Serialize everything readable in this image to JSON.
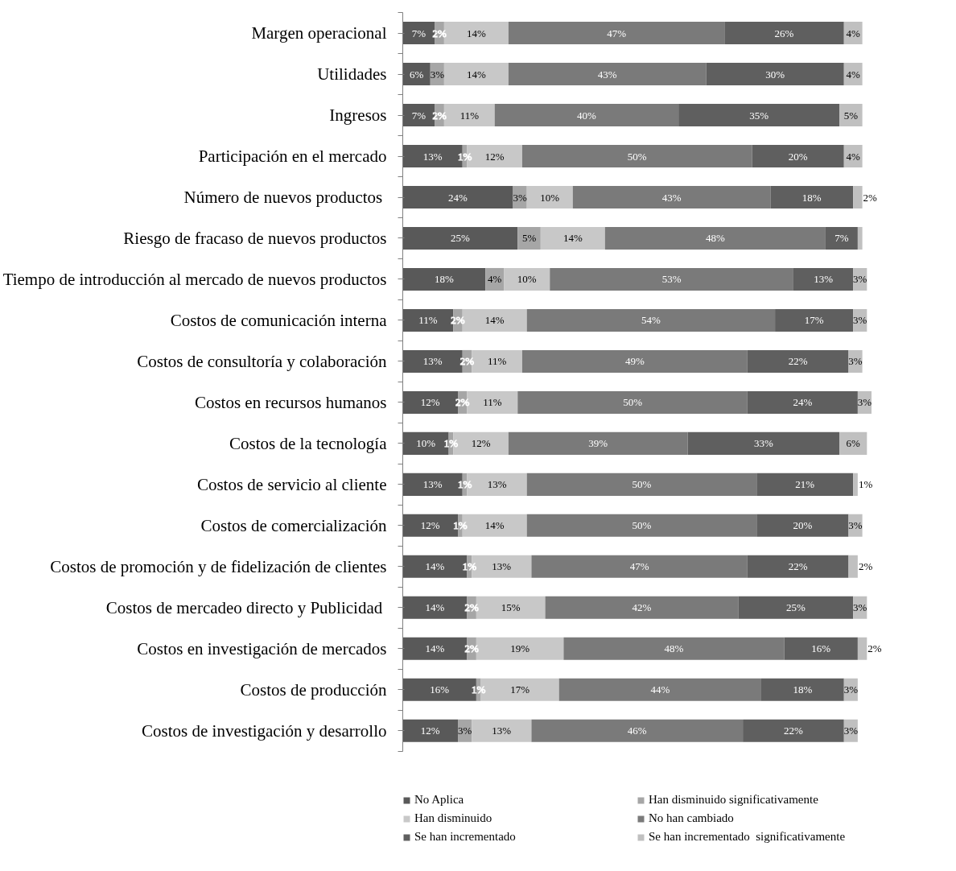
{
  "chart_data": {
    "type": "bar",
    "orientation": "horizontal",
    "stacked": true,
    "legend": "bottom",
    "grid": false,
    "tick_labels": "y",
    "categories": [
      "Margen operacional",
      "Utilidades",
      "Ingresos",
      "Participación en el mercado",
      "Número de  nuevos productos",
      "Riesgo de fracaso de nuevos productos",
      "Tiempo de introducción al mercado de nuevos productos",
      "Costos de comunicación interna",
      "Costos de consultoría y colaboración",
      "Costos en recursos humanos",
      "Costos de la tecnología",
      "Costos de servicio al cliente",
      "Costos de comercialización",
      "Costos de promoción y de fidelización de clientes",
      "Costos de mercadeo  directo y Publicidad",
      "Costos en investigación de mercados",
      "Costos de producción",
      "Costos de investigación y desarrollo"
    ],
    "series": [
      {
        "name": "No Aplica",
        "color": "#595959",
        "values": [
          7,
          6,
          7,
          13,
          24,
          25,
          18,
          11,
          13,
          12,
          10,
          13,
          12,
          14,
          14,
          14,
          16,
          12
        ],
        "value_labels": [
          "7%",
          "6%",
          "7%",
          "13%",
          "24%",
          "25%",
          "18%",
          "11%",
          "13%",
          "12%",
          "10%",
          "13%",
          "12%",
          "14%",
          "14%",
          "14%",
          "16%",
          "12%"
        ]
      },
      {
        "name": "Han disminuido significativamente",
        "color": "#a6a6a6",
        "values": [
          2,
          3,
          2,
          1,
          3,
          5,
          4,
          2,
          2,
          2,
          1,
          1,
          1,
          1,
          2,
          2,
          1,
          3
        ],
        "value_labels": [
          "2%",
          "3%",
          "2%",
          "1%",
          "3%",
          "5%",
          "4%",
          "2%",
          "2%",
          "2%",
          "1%",
          "1%",
          "1%",
          "1%",
          "2%",
          "2%",
          "1%",
          "3%"
        ]
      },
      {
        "name": "Han disminuido",
        "color": "#c8c8c8",
        "values": [
          14,
          14,
          11,
          12,
          10,
          14,
          10,
          14,
          11,
          11,
          12,
          13,
          14,
          13,
          15,
          19,
          17,
          13
        ],
        "value_labels": [
          "14%",
          "14%",
          "11%",
          "12%",
          "10%",
          "14%",
          "10%",
          "14%",
          "11%",
          "11%",
          "12%",
          "13%",
          "14%",
          "13%",
          "15%",
          "19%",
          "17%",
          "13%"
        ]
      },
      {
        "name": "No han cambiado",
        "color": "#7a7a7a",
        "values": [
          47,
          43,
          40,
          50,
          43,
          48,
          53,
          54,
          49,
          50,
          39,
          50,
          50,
          47,
          42,
          48,
          44,
          46
        ],
        "value_labels": [
          "47%",
          "43%",
          "40%",
          "50%",
          "43%",
          "48%",
          "53%",
          "54%",
          "49%",
          "50%",
          "39%",
          "50%",
          "50%",
          "47%",
          "42%",
          "48%",
          "44%",
          "46%"
        ]
      },
      {
        "name": "Se han incrementado",
        "color": "#5f5f5f",
        "values": [
          26,
          30,
          35,
          20,
          18,
          7,
          13,
          17,
          22,
          24,
          33,
          21,
          20,
          22,
          25,
          16,
          18,
          22
        ],
        "value_labels": [
          "26%",
          "30%",
          "35%",
          "20%",
          "18%",
          "7%",
          "13%",
          "17%",
          "22%",
          "24%",
          "33%",
          "21%",
          "20%",
          "22%",
          "25%",
          "16%",
          "18%",
          "22%"
        ]
      },
      {
        "name": "Se han incrementado  significativamente",
        "color": "#c0c0c0",
        "values": [
          4,
          4,
          5,
          4,
          2,
          1,
          3,
          3,
          3,
          3,
          6,
          1,
          3,
          2,
          3,
          2,
          3,
          3
        ],
        "value_labels": [
          "4%",
          "4%",
          "5%",
          "4%",
          "2%",
          null,
          "3%",
          "3%",
          "3%",
          "3%",
          "6%",
          "1%",
          "3%",
          "2%",
          "3%",
          "2%",
          "3%",
          "3%"
        ]
      }
    ]
  }
}
